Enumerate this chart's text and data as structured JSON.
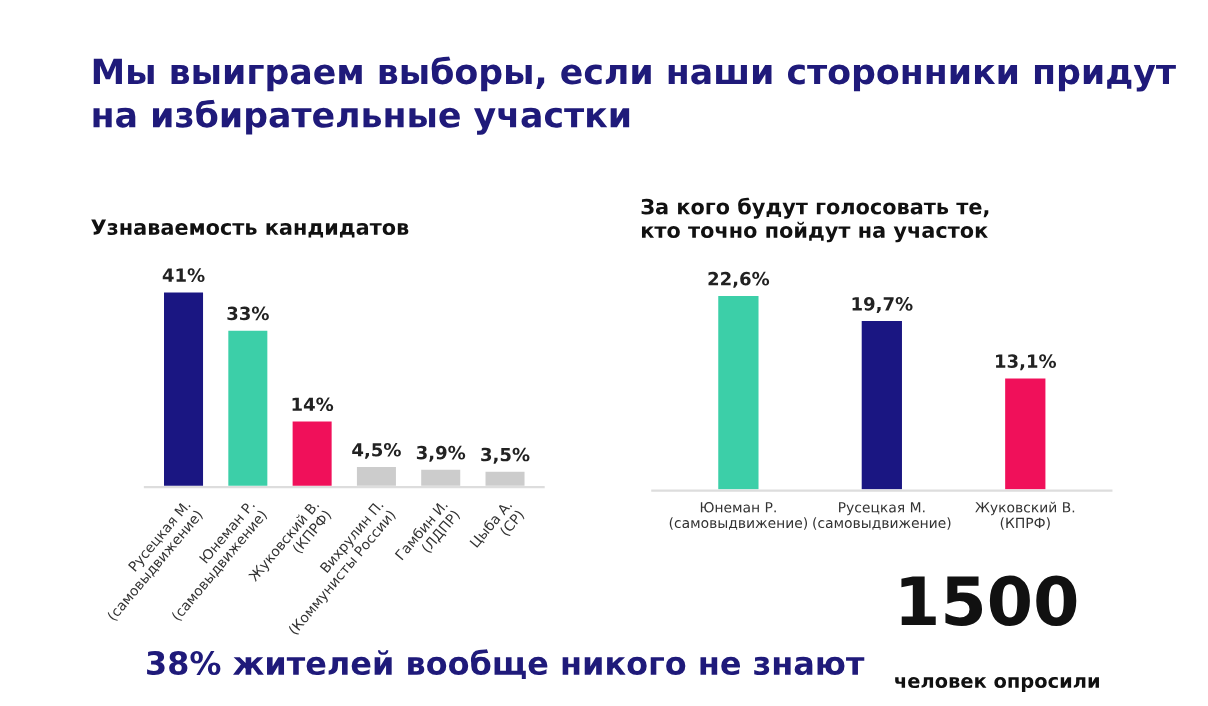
{
  "chart_data": [
    {
      "type": "bar",
      "title": "Мы выиграем выборы, если наши сторонники придут\nна избирательные участки",
      "subtitle": "Узнаваемость кандидатов",
      "categories": [
        "Русецкая М.\n(самовыдвижение)",
        "Юнеман Р.\n(самовыдвижение)",
        "Жуковский В.\n(КПРФ)",
        "Вихрулин П.\n(Коммунисты России)",
        "Гамбин И.\n(ЛДПР)",
        "Цыба А.\n(СР)"
      ],
      "values": [
        41,
        33,
        14,
        4.5,
        3.9,
        3.5
      ],
      "value_labels": [
        "41%",
        "33%",
        "14%",
        "4,5%",
        "3,9%",
        "3,5%"
      ],
      "colors": [
        "#1a1682",
        "#3ccfa8",
        "#f0105a",
        "#cccccc",
        "#cccccc",
        "#cccccc"
      ],
      "annotations": [
        "38% жителей вообще никого не знают"
      ]
    },
    {
      "type": "bar",
      "subtitle": "За кого будут голосовать те,\nкто точно пойдут на участок",
      "categories": [
        "Юнеман Р.\n(самовыдвижение)",
        "Русецкая М.\n(самовыдвижение)",
        "Жуковский В.\n(КПРФ)"
      ],
      "values": [
        22.6,
        19.7,
        13.1
      ],
      "value_labels": [
        "22,6%",
        "19,7%",
        "13,1%"
      ],
      "colors": [
        "#3ccfa8",
        "#1a1682",
        "#f0105a"
      ],
      "annotations": [
        "1500",
        "человек опросили"
      ]
    }
  ]
}
